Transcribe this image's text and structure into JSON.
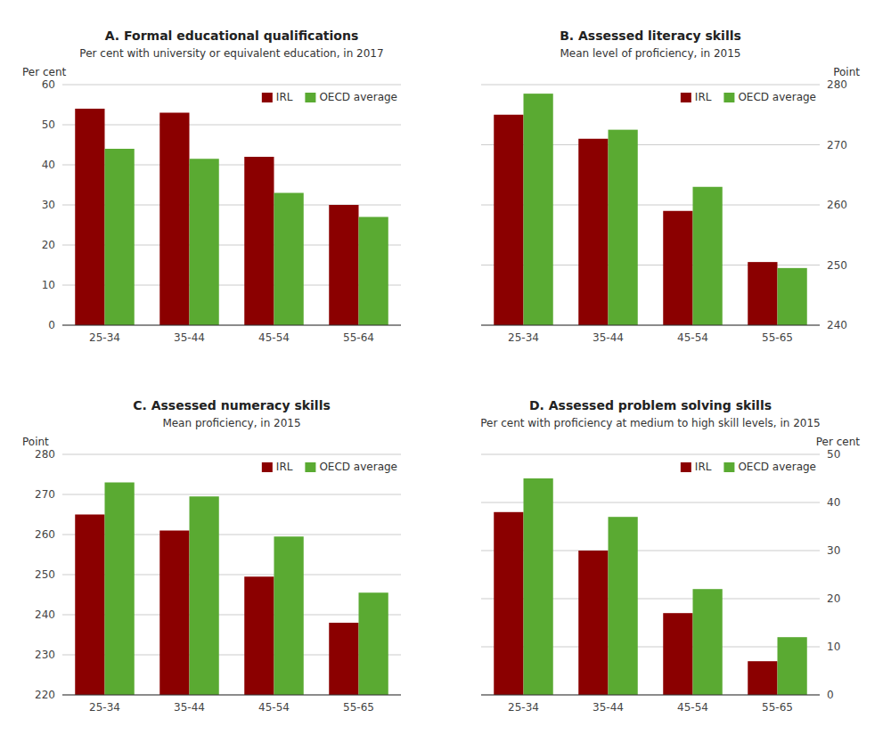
{
  "chart_data": [
    {
      "type": "bar",
      "title": "A. Formal educational qualifications",
      "subtitle": "Per cent with university or equivalent education, in 2017",
      "ylabel": "Per cent",
      "categories": [
        "25-34",
        "35-44",
        "45-54",
        "55-64"
      ],
      "series": [
        {
          "name": "IRL",
          "color": "#8B0000",
          "values": [
            54.0,
            53.0,
            42.0,
            30.0
          ]
        },
        {
          "name": "OECD average",
          "color": "#5aaa32",
          "values": [
            44.0,
            41.5,
            33.0,
            27.0
          ]
        }
      ],
      "ylim": [
        0,
        60
      ],
      "yticks": [
        0,
        10,
        20,
        30,
        40,
        50,
        60
      ],
      "grid": true,
      "legend": "upper right"
    },
    {
      "type": "bar",
      "title": "B. Assessed literacy skills",
      "subtitle": "Mean level of proficiency, in 2015",
      "y2label": "Point",
      "categories": [
        "25-34",
        "35-44",
        "45-54",
        "55-65"
      ],
      "series": [
        {
          "name": "IRL",
          "color": "#8B0000",
          "values": [
            275.0,
            271.0,
            259.0,
            250.5
          ],
          "axis": "y2"
        },
        {
          "name": "OECD average",
          "color": "#5aaa32",
          "values": [
            278.5,
            272.5,
            263.0,
            249.5
          ],
          "axis": "y2"
        }
      ],
      "y2lim": [
        240,
        280
      ],
      "y2ticks": [
        240,
        250,
        260,
        270,
        280
      ],
      "grid": true,
      "legend": "upper right"
    },
    {
      "type": "bar",
      "title": "C. Assessed numeracy skills",
      "subtitle": "Mean proficiency, in 2015",
      "ylabel": "Point",
      "categories": [
        "25-34",
        "35-44",
        "45-54",
        "55-65"
      ],
      "series": [
        {
          "name": "IRL",
          "color": "#8B0000",
          "values": [
            265.0,
            261.0,
            249.5,
            238.0
          ]
        },
        {
          "name": "OECD average",
          "color": "#5aaa32",
          "values": [
            273.0,
            269.5,
            259.5,
            245.5
          ]
        }
      ],
      "ylim": [
        220,
        280
      ],
      "yticks": [
        220,
        230,
        240,
        250,
        260,
        270,
        280
      ],
      "grid": true,
      "legend": "upper right"
    },
    {
      "type": "bar",
      "title": "D. Assessed problem solving skills",
      "subtitle": "Per cent with proficiency at medium to high skill levels, in 2015",
      "y2label": "Per cent",
      "categories": [
        "25-34",
        "35-44",
        "45-54",
        "55-65"
      ],
      "series": [
        {
          "name": "IRL",
          "color": "#8B0000",
          "values": [
            38.0,
            30.0,
            17.0,
            7.0
          ],
          "axis": "y2"
        },
        {
          "name": "OECD average",
          "color": "#5aaa32",
          "values": [
            45.0,
            37.0,
            22.0,
            12.0
          ],
          "axis": "y2"
        }
      ],
      "y2lim": [
        0,
        50
      ],
      "y2ticks": [
        0,
        10,
        20,
        30,
        40,
        50
      ],
      "grid": true,
      "legend": "upper right"
    }
  ]
}
